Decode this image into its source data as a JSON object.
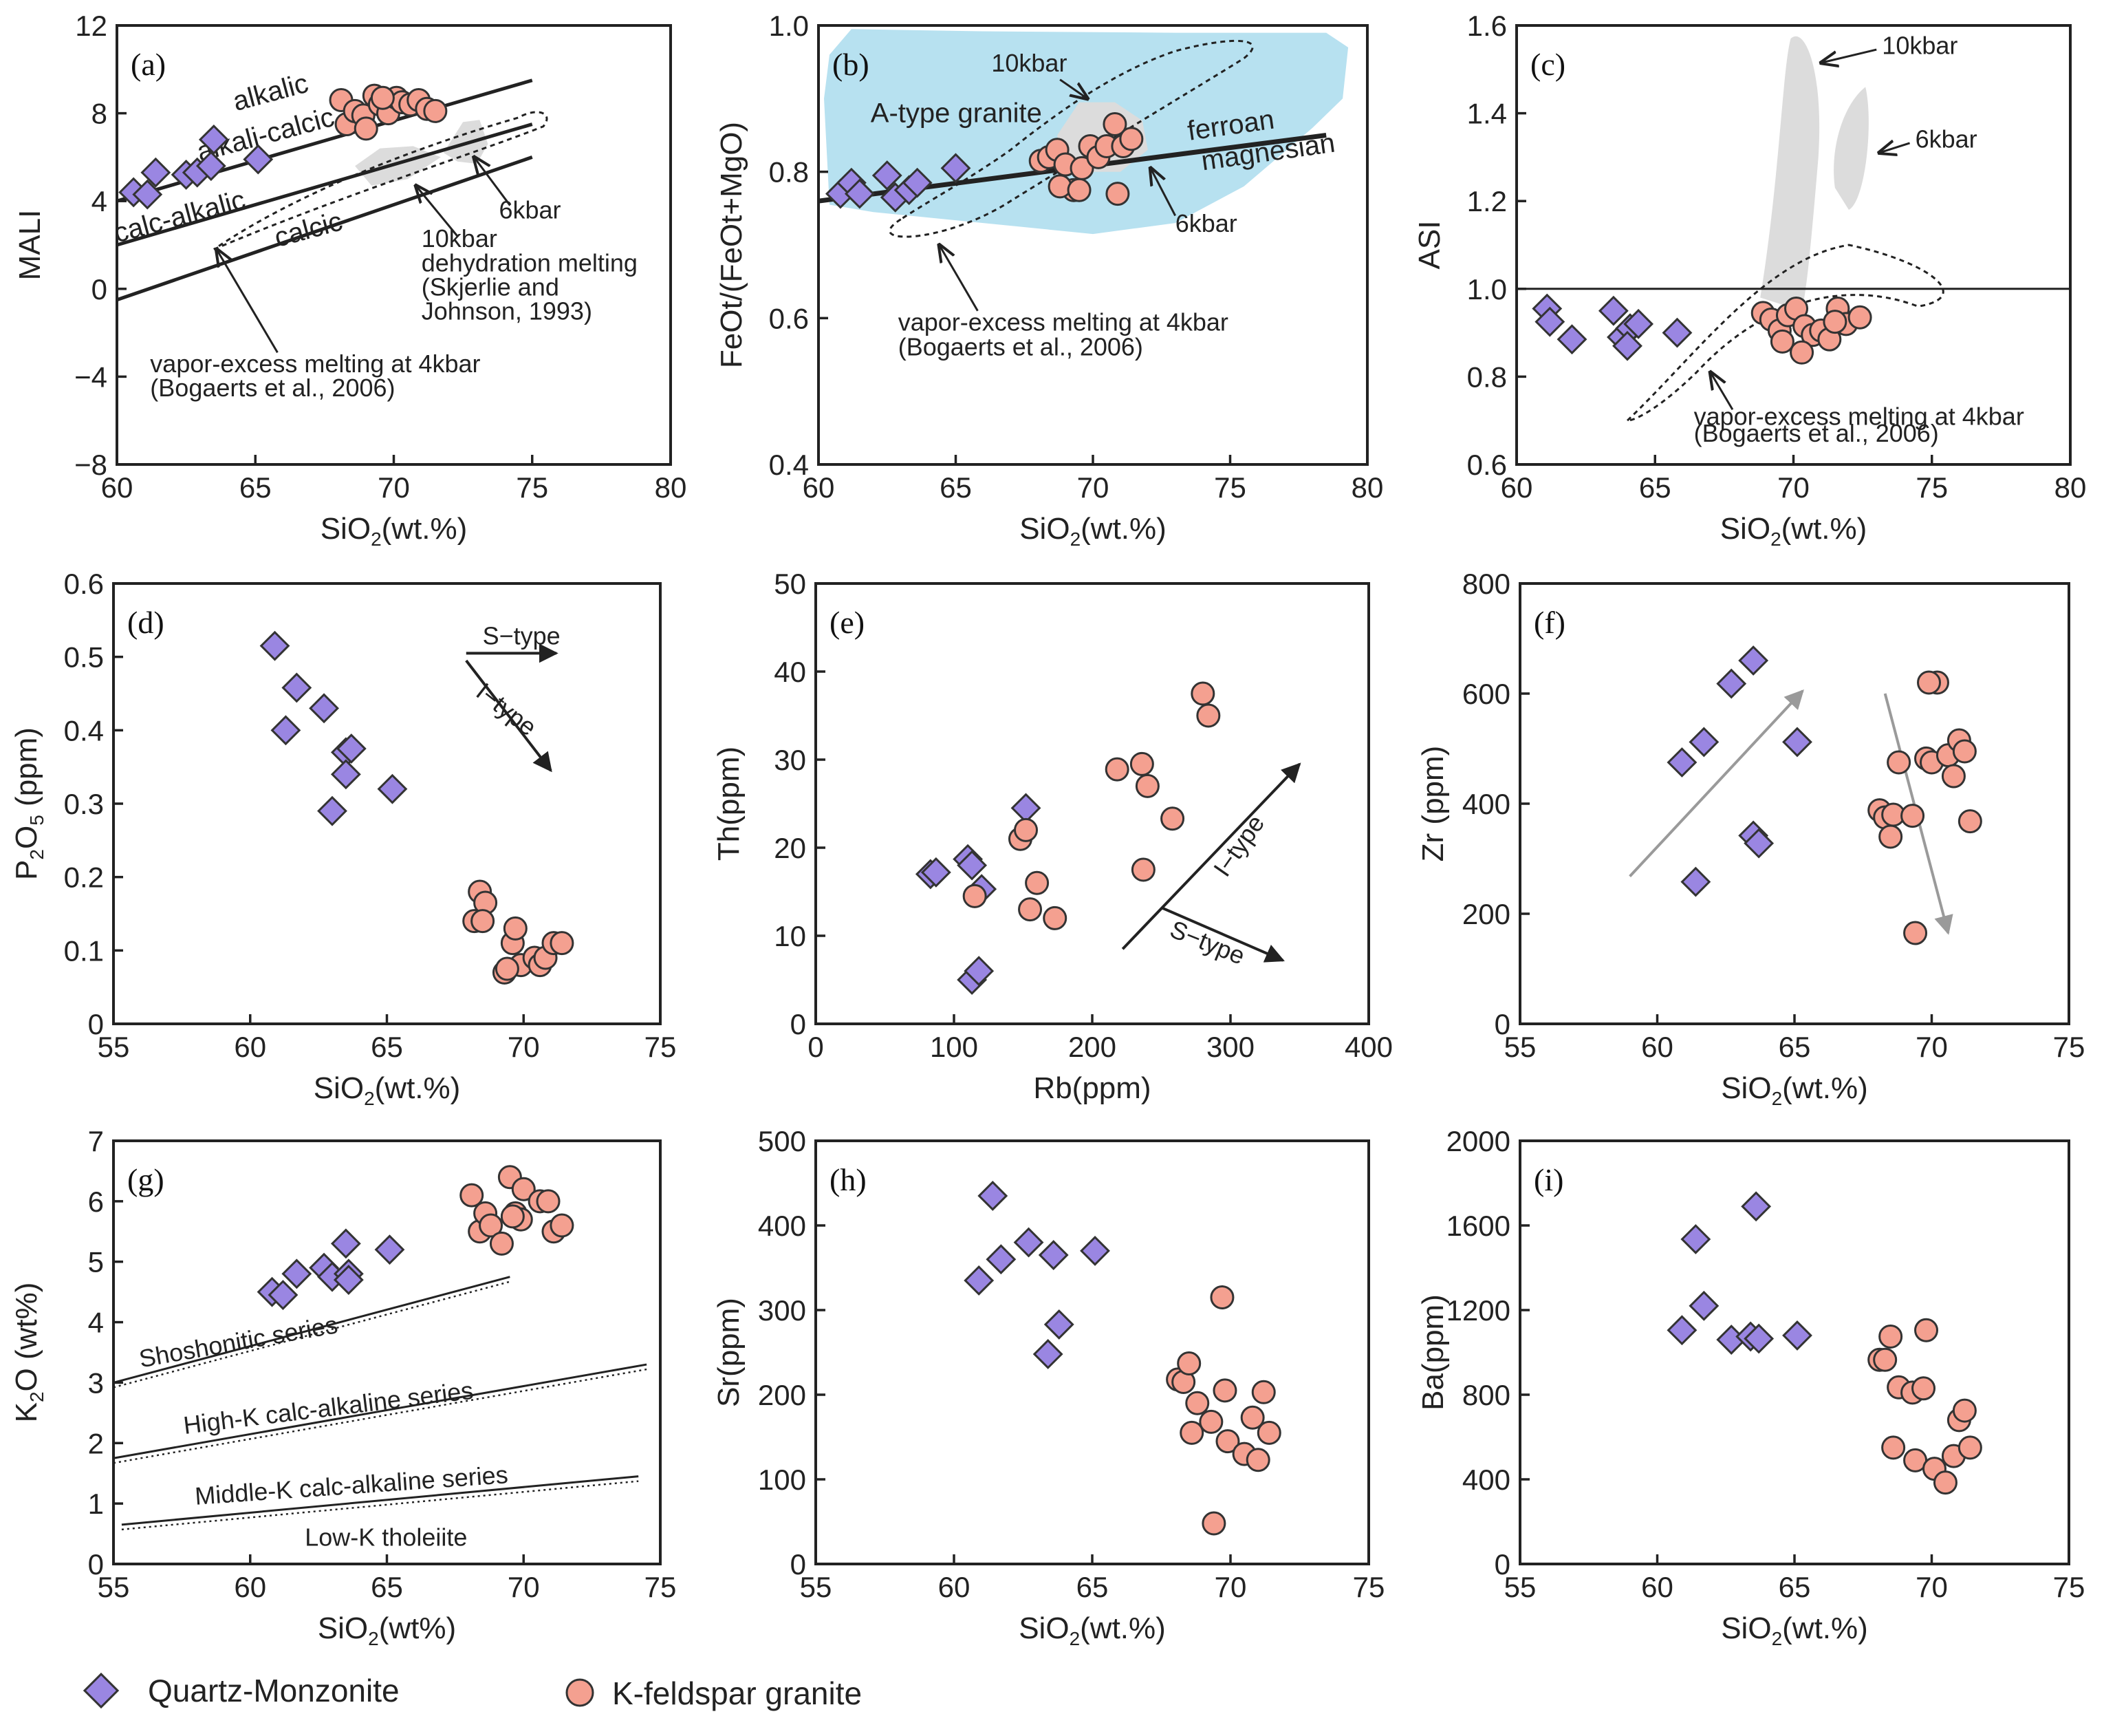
{
  "colors": {
    "monzonite": "#9a86e2",
    "granite": "#f4a090",
    "atype": "#b7e1f0",
    "field": "#dcdcdc",
    "arrow_gray": "#9a9a9a"
  },
  "legend": {
    "monzonite_label": "Quartz-Monzonite",
    "granite_label": "K-feldspar granite"
  },
  "chart_data": [
    {
      "id": "a",
      "type": "scatter",
      "panel_label": "(a)",
      "xlabel_main": "SiO",
      "xlabel_sub": "2",
      "xlabel_tail": "(wt.%)",
      "ylabel": "MALI",
      "xlim": [
        60,
        80
      ],
      "ylim": [
        -8,
        12
      ],
      "xticks": [
        60,
        65,
        70,
        75,
        80
      ],
      "yticks": [
        -8,
        -4,
        0,
        4,
        8,
        12
      ],
      "xtick_labels": [
        "60",
        "65",
        "70",
        "75",
        "80"
      ],
      "ytick_labels": [
        "−8",
        "−4",
        "0",
        "4",
        "8",
        "12"
      ],
      "series": [
        {
          "name": "Quartz-Monzonite",
          "marker": "diamond",
          "x": [
            60.6,
            61.1,
            61.4,
            62.5,
            62.9,
            63.4,
            63.5,
            65.1
          ],
          "y": [
            4.4,
            4.3,
            5.3,
            5.2,
            5.3,
            5.6,
            6.8,
            5.9
          ]
        },
        {
          "name": "K-feldspar granite",
          "marker": "circle",
          "x": [
            68.1,
            68.3,
            68.6,
            68.9,
            69.3,
            69.5,
            69.8,
            70.1,
            70.3,
            70.6,
            70.9,
            71.2,
            71.5,
            69.0,
            69.6
          ],
          "y": [
            8.6,
            7.5,
            8.1,
            7.9,
            8.8,
            8.4,
            8.0,
            8.7,
            8.5,
            8.4,
            8.6,
            8.2,
            8.1,
            7.3,
            8.7
          ]
        }
      ],
      "lines": [
        {
          "name": "alkalic boundary",
          "x": [
            60,
            75
          ],
          "y": [
            4.0,
            9.5
          ]
        },
        {
          "name": "alkali-calcic boundary",
          "x": [
            60,
            75
          ],
          "y": [
            2.0,
            7.5
          ]
        },
        {
          "name": "calc-alkalic boundary",
          "x": [
            60,
            75
          ],
          "y": [
            -0.5,
            6.0
          ]
        }
      ],
      "annotations": {
        "alkalic": "alkalic",
        "alkali_calcic": "alkali-calcic",
        "calc_alkalic": "calc-alkalic",
        "calcic": "calcic",
        "kbar6": "6kbar",
        "kbar10": "10kbar",
        "dehydration": "dehydration melting",
        "skj1": "(Skjerlie and",
        "skj2": "Johnson, 1993)",
        "vapor": "vapor-excess melting at 4kbar",
        "bog": "(Bogaerts et al., 2006)"
      }
    },
    {
      "id": "b",
      "type": "scatter",
      "panel_label": "(b)",
      "xlabel_main": "SiO",
      "xlabel_sub": "2",
      "xlabel_tail": "(wt.%)",
      "ylabel": "FeOt/(FeOt+MgO)",
      "xlim": [
        60,
        80
      ],
      "ylim": [
        0.4,
        1.0
      ],
      "xticks": [
        60,
        65,
        70,
        75,
        80
      ],
      "yticks": [
        0.4,
        0.6,
        0.8,
        1.0
      ],
      "xtick_labels": [
        "60",
        "65",
        "70",
        "75",
        "80"
      ],
      "ytick_labels": [
        "0.4",
        "0.6",
        "0.8",
        "1.0"
      ],
      "series": [
        {
          "name": "Quartz-Monzonite",
          "marker": "diamond",
          "x": [
            60.8,
            61.2,
            61.5,
            62.5,
            62.8,
            63.3,
            63.6,
            65.0
          ],
          "y": [
            0.77,
            0.785,
            0.77,
            0.795,
            0.765,
            0.775,
            0.785,
            0.805
          ]
        },
        {
          "name": "K-feldspar granite",
          "marker": "circle",
          "x": [
            68.1,
            68.4,
            68.7,
            69.0,
            69.3,
            69.6,
            69.9,
            70.2,
            70.5,
            70.8,
            71.1,
            71.4,
            68.8,
            69.5,
            70.9
          ],
          "y": [
            0.815,
            0.82,
            0.83,
            0.81,
            0.775,
            0.805,
            0.835,
            0.82,
            0.835,
            0.865,
            0.835,
            0.845,
            0.78,
            0.775,
            0.77
          ]
        }
      ],
      "lines": [
        {
          "name": "ferroan/magnesian boundary",
          "x": [
            60,
            78.5
          ],
          "y": [
            0.76,
            0.85
          ]
        }
      ],
      "annotations": {
        "atype": "A-type granite",
        "kbar10": "10kbar",
        "kbar6": "6kbar",
        "ferroan": "ferroan",
        "magnesian": "magnesian",
        "vapor": "vapor-excess melting at 4kbar",
        "bog": "(Bogaerts et al., 2006)"
      }
    },
    {
      "id": "c",
      "type": "scatter",
      "panel_label": "(c)",
      "xlabel_main": "SiO",
      "xlabel_sub": "2",
      "xlabel_tail": "(wt.%)",
      "ylabel": "ASI",
      "xlim": [
        60,
        80
      ],
      "ylim": [
        0.6,
        1.6
      ],
      "xticks": [
        60,
        65,
        70,
        75,
        80
      ],
      "yticks": [
        0.6,
        0.8,
        1.0,
        1.2,
        1.4,
        1.6
      ],
      "xtick_labels": [
        "60",
        "65",
        "70",
        "75",
        "80"
      ],
      "ytick_labels": [
        "0.6",
        "0.8",
        "1.0",
        "1.2",
        "1.4",
        "1.6"
      ],
      "series": [
        {
          "name": "Quartz-Monzonite",
          "marker": "diamond",
          "x": [
            61.1,
            61.2,
            62.0,
            63.5,
            63.8,
            64.1,
            64.4,
            65.8,
            64.0
          ],
          "y": [
            0.955,
            0.925,
            0.885,
            0.95,
            0.89,
            0.91,
            0.92,
            0.9,
            0.87
          ]
        },
        {
          "name": "K-feldspar granite",
          "marker": "circle",
          "x": [
            68.9,
            69.2,
            69.5,
            69.8,
            70.1,
            70.4,
            70.7,
            71.0,
            71.3,
            71.6,
            71.9,
            72.4,
            69.6,
            70.3,
            71.5
          ],
          "y": [
            0.945,
            0.93,
            0.905,
            0.94,
            0.955,
            0.915,
            0.895,
            0.905,
            0.885,
            0.955,
            0.92,
            0.935,
            0.88,
            0.855,
            0.925
          ]
        }
      ],
      "lines": [
        {
          "name": "ASI = 1",
          "x": [
            60,
            80
          ],
          "y": [
            1.0,
            1.0
          ]
        }
      ],
      "annotations": {
        "kbar10": "10kbar",
        "kbar6": "6kbar",
        "vapor": "vapor-excess melting at 4kbar",
        "bog": "(Bogaerts et al., 2006)"
      }
    },
    {
      "id": "d",
      "type": "scatter",
      "panel_label": "(d)",
      "xlabel_main": "SiO",
      "xlabel_sub": "2",
      "xlabel_tail": "(wt.%)",
      "ylabel_main": "P",
      "ylabel_sub": "2",
      "ylabel_tail": "O",
      "ylabel_sub2": "5",
      "ylabel_tail2": " (ppm)",
      "xlim": [
        55,
        75
      ],
      "ylim": [
        0,
        0.6
      ],
      "xticks": [
        55,
        60,
        65,
        70,
        75
      ],
      "yticks": [
        0,
        0.1,
        0.2,
        0.3,
        0.4,
        0.5,
        0.6
      ],
      "xtick_labels": [
        "55",
        "60",
        "65",
        "70",
        "75"
      ],
      "ytick_labels": [
        "0",
        "0.1",
        "0.2",
        "0.3",
        "0.4",
        "0.5",
        "0.6"
      ],
      "series": [
        {
          "name": "Quartz-Monzonite",
          "marker": "diamond",
          "x": [
            60.9,
            61.3,
            61.7,
            62.7,
            63.0,
            63.5,
            63.7,
            63.5,
            65.2
          ],
          "y": [
            0.515,
            0.4,
            0.458,
            0.43,
            0.29,
            0.37,
            0.375,
            0.34,
            0.32
          ]
        },
        {
          "name": "K-feldspar granite",
          "marker": "circle",
          "x": [
            68.2,
            68.4,
            68.6,
            68.5,
            69.3,
            69.6,
            69.7,
            69.9,
            70.4,
            70.6,
            70.8,
            71.1,
            71.4,
            69.4
          ],
          "y": [
            0.14,
            0.18,
            0.165,
            0.14,
            0.07,
            0.11,
            0.13,
            0.08,
            0.09,
            0.08,
            0.09,
            0.11,
            0.11,
            0.075
          ]
        }
      ],
      "annotations": {
        "stype": "S−type",
        "itype": "I−type"
      }
    },
    {
      "id": "e",
      "type": "scatter",
      "panel_label": "(e)",
      "xlabel": "Rb(ppm)",
      "ylabel": "Th(ppm)",
      "xlim": [
        0,
        400
      ],
      "ylim": [
        0,
        50
      ],
      "xticks": [
        0,
        100,
        200,
        300,
        400
      ],
      "yticks": [
        0,
        10,
        20,
        30,
        40,
        50
      ],
      "xtick_labels": [
        "0",
        "100",
        "200",
        "300",
        "400"
      ],
      "ytick_labels": [
        "0",
        "10",
        "20",
        "30",
        "40",
        "50"
      ],
      "series": [
        {
          "name": "Quartz-Monzonite",
          "marker": "diamond",
          "x": [
            83,
            87,
            110,
            113,
            120,
            152,
            113,
            118
          ],
          "y": [
            17.0,
            17.2,
            18.7,
            18.0,
            15.3,
            24.5,
            5.0,
            6.0
          ]
        },
        {
          "name": "K-feldspar granite",
          "marker": "circle",
          "x": [
            115,
            148,
            152,
            155,
            160,
            173,
            218,
            236,
            240,
            237,
            258,
            280,
            284
          ],
          "y": [
            14.5,
            21.0,
            22.0,
            13.0,
            16.0,
            12.0,
            28.9,
            29.5,
            27.0,
            17.5,
            23.3,
            37.5,
            35.0
          ]
        }
      ],
      "annotations": {
        "itype": "I−type",
        "stype": "S−type"
      }
    },
    {
      "id": "f",
      "type": "scatter",
      "panel_label": "(f)",
      "xlabel_main": "SiO",
      "xlabel_sub": "2",
      "xlabel_tail": "(wt.%)",
      "ylabel": "Zr (ppm)",
      "xlim": [
        55,
        75
      ],
      "ylim": [
        0,
        800
      ],
      "xticks": [
        55,
        60,
        65,
        70,
        75
      ],
      "yticks": [
        0,
        200,
        400,
        600,
        800
      ],
      "xtick_labels": [
        "55",
        "60",
        "65",
        "70",
        "75"
      ],
      "ytick_labels": [
        "0",
        "200",
        "400",
        "600",
        "800"
      ],
      "series": [
        {
          "name": "Quartz-Monzonite",
          "marker": "diamond",
          "x": [
            60.9,
            61.4,
            61.7,
            62.7,
            63.5,
            63.5,
            63.7,
            65.1
          ],
          "y": [
            475,
            258,
            512,
            618,
            342,
            660,
            328,
            512
          ]
        },
        {
          "name": "K-feldspar granite",
          "marker": "circle",
          "x": [
            68.1,
            68.3,
            68.5,
            68.6,
            68.8,
            69.3,
            69.4,
            69.8,
            70.0,
            70.2,
            70.6,
            70.8,
            71.0,
            71.2,
            71.4,
            69.9
          ],
          "y": [
            388,
            375,
            340,
            380,
            475,
            378,
            165,
            482,
            475,
            620,
            488,
            450,
            515,
            495,
            368,
            620
          ]
        }
      ],
      "annotations": {}
    },
    {
      "id": "g",
      "type": "scatter",
      "panel_label": "(g)",
      "xlabel_main": "SiO",
      "xlabel_sub": "2",
      "xlabel_tail": "(wt%)",
      "ylabel_main": "K",
      "ylabel_sub": "2",
      "ylabel_tail": "O (wt%)",
      "xlim": [
        55,
        75
      ],
      "ylim": [
        0,
        7
      ],
      "xticks": [
        55,
        60,
        65,
        70,
        75
      ],
      "yticks": [
        0,
        1,
        2,
        3,
        4,
        5,
        6,
        7
      ],
      "xtick_labels": [
        "55",
        "60",
        "65",
        "70",
        "75"
      ],
      "ytick_labels": [
        "0",
        "1",
        "2",
        "3",
        "4",
        "5",
        "6",
        "7"
      ],
      "series": [
        {
          "name": "Quartz-Monzonite",
          "marker": "diamond",
          "x": [
            60.8,
            61.2,
            61.7,
            62.7,
            63.0,
            63.5,
            63.6,
            63.6,
            65.1
          ],
          "y": [
            4.5,
            4.45,
            4.8,
            4.9,
            4.75,
            5.3,
            4.8,
            4.7,
            5.2
          ]
        },
        {
          "name": "K-feldspar granite",
          "marker": "circle",
          "x": [
            68.1,
            68.4,
            68.6,
            68.8,
            69.2,
            69.5,
            69.7,
            69.9,
            70.0,
            70.6,
            70.9,
            71.1,
            71.4,
            69.6
          ],
          "y": [
            6.1,
            5.5,
            5.8,
            5.6,
            5.3,
            6.4,
            5.8,
            5.7,
            6.2,
            6.0,
            6.0,
            5.5,
            5.6,
            5.75
          ]
        }
      ],
      "lines": [
        {
          "name": "Shoshonitic lower boundary",
          "x": [
            55,
            69.5
          ],
          "y": [
            3.0,
            4.75
          ]
        },
        {
          "name": "High-K lower boundary",
          "x": [
            55,
            74.5
          ],
          "y": [
            1.75,
            3.3
          ]
        },
        {
          "name": "Middle-K lower boundary",
          "x": [
            55.3,
            74.2
          ],
          "y": [
            0.65,
            1.45
          ]
        }
      ],
      "annotations": {
        "shoshonitic": "Shoshonitic series",
        "highk": "High-K calc-alkaline series",
        "middlek": "Middle-K calc-alkaline series",
        "lowk": "Low-K tholeiite"
      }
    },
    {
      "id": "h",
      "type": "scatter",
      "panel_label": "(h)",
      "xlabel_main": "SiO",
      "xlabel_sub": "2",
      "xlabel_tail": "(wt.%)",
      "ylabel": "Sr(ppm)",
      "xlim": [
        55,
        75
      ],
      "ylim": [
        0,
        500
      ],
      "xticks": [
        55,
        60,
        65,
        70,
        75
      ],
      "yticks": [
        0,
        100,
        200,
        300,
        400,
        500
      ],
      "xtick_labels": [
        "55",
        "60",
        "65",
        "70",
        "75"
      ],
      "ytick_labels": [
        "0",
        "100",
        "200",
        "300",
        "400",
        "500"
      ],
      "series": [
        {
          "name": "Quartz-Monzonite",
          "marker": "diamond",
          "x": [
            60.9,
            61.4,
            61.7,
            62.7,
            63.4,
            63.6,
            63.8,
            65.1
          ],
          "y": [
            335,
            435,
            360,
            380,
            248,
            365,
            283,
            370
          ]
        },
        {
          "name": "K-feldspar granite",
          "marker": "circle",
          "x": [
            68.1,
            68.3,
            68.5,
            68.6,
            68.8,
            69.3,
            69.4,
            69.7,
            69.8,
            69.9,
            70.5,
            70.8,
            71.0,
            71.2,
            71.4
          ],
          "y": [
            218,
            215,
            237,
            155,
            190,
            168,
            48,
            315,
            205,
            145,
            130,
            173,
            123,
            203,
            155
          ]
        }
      ],
      "annotations": {}
    },
    {
      "id": "i",
      "type": "scatter",
      "panel_label": "(i)",
      "xlabel_main": "SiO",
      "xlabel_sub": "2",
      "xlabel_tail": "(wt.%)",
      "ylabel": "Ba(ppm)",
      "xlim": [
        55,
        75
      ],
      "ylim": [
        0,
        2000
      ],
      "xticks": [
        55,
        60,
        65,
        70,
        75
      ],
      "yticks": [
        0,
        400,
        800,
        1200,
        1600,
        2000
      ],
      "xtick_labels": [
        "55",
        "60",
        "65",
        "70",
        "75"
      ],
      "ytick_labels": [
        "0",
        "400",
        "800",
        "1200",
        "1600",
        "2000"
      ],
      "series": [
        {
          "name": "Quartz-Monzonite",
          "marker": "diamond",
          "x": [
            60.9,
            61.4,
            61.7,
            62.7,
            63.4,
            63.6,
            63.7,
            65.1
          ],
          "y": [
            1105,
            1535,
            1220,
            1060,
            1075,
            1690,
            1065,
            1080
          ]
        },
        {
          "name": "K-feldspar granite",
          "marker": "circle",
          "x": [
            68.1,
            68.3,
            68.5,
            68.6,
            68.8,
            69.3,
            69.4,
            69.7,
            69.8,
            70.1,
            70.5,
            70.8,
            71.0,
            71.2,
            71.4
          ],
          "y": [
            965,
            965,
            1075,
            550,
            835,
            810,
            490,
            830,
            1105,
            450,
            385,
            510,
            680,
            725,
            550
          ]
        }
      ],
      "annotations": {}
    }
  ]
}
